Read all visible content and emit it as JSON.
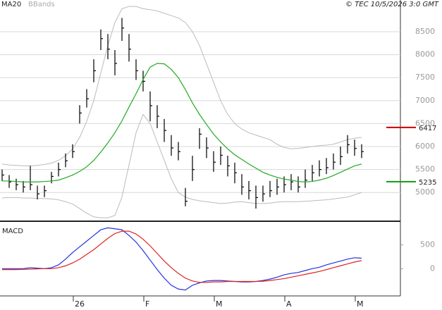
{
  "chart_data": [
    {
      "type": "ohlc",
      "credit": "© TEC 10/5/2026 3:0 GMT",
      "categories": [
        null,
        null,
        null,
        null,
        null,
        null,
        null,
        null,
        null,
        null,
        "26",
        null,
        null,
        null,
        null,
        null,
        null,
        null,
        null,
        null,
        "F",
        null,
        null,
        null,
        null,
        null,
        null,
        null,
        null,
        null,
        "M",
        null,
        null,
        null,
        null,
        null,
        null,
        null,
        null,
        null,
        "A",
        null,
        null,
        null,
        null,
        null,
        null,
        null,
        null,
        null,
        "M",
        null
      ],
      "close": [
        5380,
        5230,
        5170,
        5120,
        5170,
        4970,
        5040,
        5350,
        5500,
        5690,
        5890,
        6730,
        7040,
        7650,
        8350,
        8120,
        7810,
        8580,
        8120,
        7650,
        7420,
        6890,
        6660,
        6350,
        5970,
        5890,
        4810,
        5500,
        6270,
        5970,
        5660,
        5810,
        5580,
        5430,
        5120,
        5040,
        4890,
        4970,
        5040,
        5120,
        5170,
        5230,
        5120,
        5270,
        5430,
        5500,
        5540,
        5660,
        5780,
        6040,
        5960,
        5890
      ],
      "high": [
        5500,
        5380,
        5300,
        5250,
        5580,
        5150,
        5150,
        5450,
        5650,
        5850,
        6050,
        6900,
        7250,
        7900,
        8550,
        8450,
        8100,
        8800,
        8450,
        7900,
        7650,
        7200,
        6900,
        6600,
        6250,
        6100,
        5100,
        5800,
        6400,
        6200,
        5900,
        6000,
        5800,
        5650,
        5400,
        5250,
        5150,
        5150,
        5250,
        5300,
        5350,
        5400,
        5350,
        5500,
        5600,
        5700,
        5750,
        5850,
        6000,
        6250,
        6150,
        6050
      ],
      "low": [
        5250,
        5100,
        5050,
        5000,
        5050,
        4850,
        4900,
        5200,
        5350,
        5550,
        5750,
        6500,
        6850,
        7400,
        8100,
        7900,
        7550,
        8300,
        7850,
        7450,
        7200,
        6550,
        6400,
        6100,
        5800,
        5700,
        4700,
        5250,
        5950,
        5750,
        5450,
        5600,
        5350,
        5200,
        4950,
        4850,
        4650,
        4800,
        4900,
        4950,
        5000,
        5050,
        5000,
        5100,
        5250,
        5350,
        5400,
        5500,
        5600,
        5850,
        5800,
        5750
      ],
      "series": [
        {
          "name": "MA20",
          "color": "#22aa22",
          "values": [
            5250,
            5250,
            5240,
            5230,
            5230,
            5230,
            5240,
            5250,
            5270,
            5320,
            5380,
            5460,
            5560,
            5700,
            5880,
            6080,
            6300,
            6560,
            6860,
            7150,
            7460,
            7730,
            7810,
            7800,
            7680,
            7500,
            7240,
            6950,
            6700,
            6480,
            6270,
            6100,
            5950,
            5820,
            5720,
            5620,
            5530,
            5440,
            5380,
            5330,
            5290,
            5270,
            5240,
            5230,
            5240,
            5270,
            5310,
            5370,
            5440,
            5510,
            5580,
            5620
          ]
        },
        {
          "name": "BBands",
          "color": "#bbbbbb",
          "upper": [
            5620,
            5600,
            5590,
            5580,
            5580,
            5590,
            5610,
            5640,
            5700,
            5800,
            5950,
            6200,
            6550,
            7000,
            7600,
            8200,
            8700,
            9000,
            9050,
            9050,
            9000,
            8980,
            8950,
            8900,
            8850,
            8800,
            8700,
            8500,
            8200,
            7800,
            7400,
            7000,
            6700,
            6500,
            6380,
            6300,
            6250,
            6200,
            6150,
            6050,
            5980,
            5950,
            5960,
            5980,
            6000,
            6020,
            6030,
            6050,
            6100,
            6150,
            6180,
            6200
          ],
          "lower": [
            4880,
            4890,
            4890,
            4880,
            4880,
            4870,
            4870,
            4860,
            4840,
            4800,
            4750,
            4650,
            4550,
            4470,
            4450,
            4450,
            4500,
            4900,
            5600,
            6300,
            6700,
            6500,
            6100,
            5700,
            5300,
            5000,
            4900,
            4850,
            4820,
            4800,
            4780,
            4760,
            4770,
            4790,
            4800,
            4780,
            4760,
            4760,
            4770,
            4790,
            4800,
            4800,
            4800,
            4810,
            4820,
            4830,
            4840,
            4860,
            4880,
            4900,
            4950,
            5000
          ]
        }
      ],
      "annotations": [
        {
          "value": 6417,
          "color": "#cc0000"
        },
        {
          "value": 5235,
          "color": "#119911"
        }
      ],
      "ylim": [
        4390,
        9190
      ],
      "yticks": [
        5000,
        5500,
        6000,
        6500,
        7000,
        7500,
        8000,
        8500
      ],
      "grid": true
    },
    {
      "type": "line",
      "title": "MACD",
      "series": [
        {
          "color": "#2233dd",
          "values": [
            0,
            0,
            0,
            0,
            20,
            10,
            0,
            20,
            80,
            200,
            340,
            460,
            580,
            700,
            820,
            860,
            840,
            820,
            700,
            560,
            380,
            180,
            -20,
            -200,
            -350,
            -430,
            -450,
            -350,
            -300,
            -260,
            -250,
            -250,
            -260,
            -270,
            -280,
            -280,
            -270,
            -250,
            -220,
            -180,
            -130,
            -100,
            -80,
            -40,
            0,
            30,
            80,
            120,
            160,
            200,
            230,
            220
          ]
        },
        {
          "color": "#dd2222",
          "values": [
            -20,
            -20,
            -20,
            -15,
            -10,
            -5,
            0,
            0,
            20,
            60,
            120,
            200,
            300,
            400,
            520,
            640,
            740,
            790,
            790,
            730,
            620,
            480,
            320,
            160,
            20,
            -100,
            -200,
            -260,
            -290,
            -290,
            -280,
            -280,
            -270,
            -270,
            -270,
            -270,
            -270,
            -265,
            -250,
            -230,
            -210,
            -180,
            -150,
            -120,
            -90,
            -60,
            -20,
            20,
            60,
            100,
            140,
            170
          ]
        }
      ],
      "ylim": [
        -560,
        985
      ],
      "yticks": [
        0,
        500
      ]
    }
  ]
}
